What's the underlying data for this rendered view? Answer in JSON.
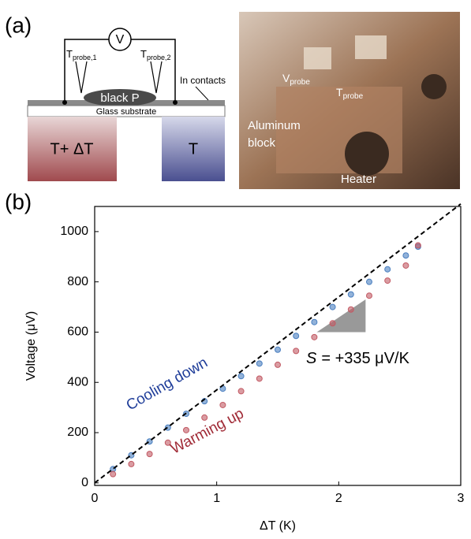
{
  "panel_a": {
    "label": "(a)",
    "voltmeter": "V",
    "probe_1": {
      "base": "T",
      "sub": "probe,1"
    },
    "probe_2": {
      "base": "T",
      "sub": "probe,2"
    },
    "contacts": "In contacts",
    "sample": "black P",
    "substrate": "Glass substrate",
    "hot_block": "T+ ΔT",
    "cold_block": "T",
    "photo": {
      "v_probe": {
        "base": "V",
        "sub": "probe"
      },
      "t_probe": {
        "base": "T",
        "sub": "probe"
      },
      "block": [
        "Aluminum",
        "block"
      ],
      "heater": "Heater"
    }
  },
  "chart_data": {
    "type": "scatter",
    "panel_label": "(b)",
    "x_label": "ΔT (K)",
    "y_label": "Voltage (μV)",
    "xlim": [
      0,
      3
    ],
    "ylim": [
      -10,
      1100
    ],
    "xticks": [
      0,
      1,
      2,
      3
    ],
    "yticks": [
      0,
      200,
      400,
      600,
      800,
      1000
    ],
    "x": [
      0.15,
      0.3,
      0.45,
      0.6,
      0.75,
      0.9,
      1.05,
      1.2,
      1.35,
      1.5,
      1.65,
      1.8,
      1.95,
      2.1,
      2.25,
      2.4,
      2.55,
      2.65
    ],
    "series": [
      {
        "color": "#4a7fc0",
        "values": [
          55,
          110,
          165,
          220,
          275,
          325,
          375,
          425,
          475,
          530,
          585,
          640,
          700,
          750,
          800,
          850,
          905,
          940
        ]
      },
      {
        "color": "#c25a64",
        "values": [
          35,
          75,
          115,
          160,
          210,
          260,
          310,
          365,
          415,
          470,
          525,
          580,
          635,
          690,
          745,
          805,
          865,
          945
        ]
      }
    ],
    "fit": {
      "x": [
        0,
        3
      ],
      "values": [
        0,
        1110
      ],
      "color": "#000000"
    },
    "slope_triangle": {
      "x": [
        1.82,
        2.22
      ],
      "y": [
        600,
        730
      ],
      "color": "#999999"
    },
    "annotations": [
      {
        "text": "Cooling down",
        "color": "#1f3d99"
      },
      {
        "text": "Warming up",
        "color": "#a02a36"
      }
    ],
    "slope_label": {
      "symbol": "S",
      "text": "= +335 μV/K"
    }
  }
}
